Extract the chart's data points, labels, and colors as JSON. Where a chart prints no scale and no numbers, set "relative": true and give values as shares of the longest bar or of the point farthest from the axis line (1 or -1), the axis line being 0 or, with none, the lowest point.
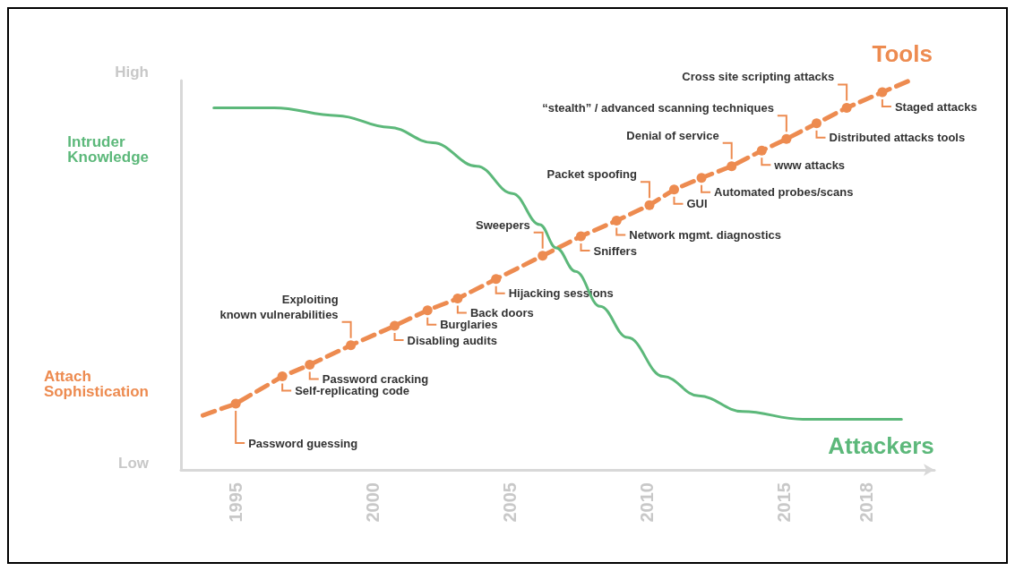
{
  "chart_data": {
    "type": "line",
    "relative": true,
    "xlim": [
      1993,
      2020.5
    ],
    "xticks": [
      1995,
      2000,
      2005,
      2010,
      2015,
      2018
    ],
    "series": [
      {
        "name": "Tools",
        "color": "#ed8b50",
        "line_style": "dashed",
        "marker": "circle",
        "x": [
          1993.8,
          1995.0,
          1996.7,
          1997.7,
          1999.2,
          2000.8,
          2002.0,
          2003.1,
          2004.5,
          2006.2,
          2007.6,
          2008.9,
          2010.1,
          2011.0,
          2012.0,
          2013.1,
          2014.2,
          2015.1,
          2016.2,
          2017.3,
          2018.6,
          2019.6
        ],
        "values": [
          0.14,
          0.17,
          0.24,
          0.27,
          0.32,
          0.37,
          0.41,
          0.44,
          0.49,
          0.55,
          0.6,
          0.64,
          0.68,
          0.72,
          0.75,
          0.78,
          0.82,
          0.85,
          0.89,
          0.93,
          0.97,
          1.0
        ]
      },
      {
        "name": "Attackers",
        "color": "#5cb87a",
        "line_style": "solid",
        "marker": "none",
        "x": [
          1994.2,
          1996.4,
          1998.7,
          2000.6,
          2002.2,
          2003.8,
          2005.1,
          2006.1,
          2006.7,
          2007.4,
          2008.3,
          2009.3,
          2010.6,
          2011.9,
          2013.5,
          2015.7,
          2019.3
        ],
        "values": [
          0.93,
          0.93,
          0.91,
          0.88,
          0.84,
          0.78,
          0.71,
          0.63,
          0.57,
          0.51,
          0.42,
          0.34,
          0.24,
          0.19,
          0.15,
          0.13,
          0.13
        ]
      }
    ],
    "annotations": [
      "High",
      "Intruder\nKnowledge",
      "Attach\nSophistication",
      "Low",
      {
        "text": "Password guessing",
        "x": 1995.0,
        "y": 0.17
      },
      {
        "text": "Self-replicating code",
        "x": 1996.7,
        "y": 0.24
      },
      {
        "text": "Password cracking",
        "x": 1997.7,
        "y": 0.27
      },
      {
        "text": "Exploiting\nknown vulnerabilities",
        "x": 1999.2,
        "y": 0.32
      },
      {
        "text": "Disabling audits",
        "x": 2000.8,
        "y": 0.37
      },
      {
        "text": "Burglaries",
        "x": 2002.0,
        "y": 0.41
      },
      {
        "text": "Back doors",
        "x": 2003.1,
        "y": 0.44
      },
      {
        "text": "Hijacking sessions",
        "x": 2004.5,
        "y": 0.49
      },
      {
        "text": "Sweepers",
        "x": 2006.2,
        "y": 0.55
      },
      {
        "text": "Sniffers",
        "x": 2007.6,
        "y": 0.6
      },
      {
        "text": "Network mgmt. diagnostics",
        "x": 2008.9,
        "y": 0.64
      },
      {
        "text": "Packet spoofing",
        "x": 2010.1,
        "y": 0.68
      },
      {
        "text": "GUI",
        "x": 2011.0,
        "y": 0.72
      },
      {
        "text": "Automated probes/scans",
        "x": 2012.0,
        "y": 0.75
      },
      {
        "text": "Denial of service",
        "x": 2013.1,
        "y": 0.78
      },
      {
        "text": "www attacks",
        "x": 2014.2,
        "y": 0.82
      },
      {
        "text": "“stealth” / advanced scanning techniques",
        "x": 2015.1,
        "y": 0.85
      },
      {
        "text": "Distributed attacks tools",
        "x": 2016.2,
        "y": 0.89
      },
      {
        "text": "Cross site scripting attacks",
        "x": 2017.3,
        "y": 0.93
      },
      {
        "text": "Staged attacks",
        "x": 2018.6,
        "y": 0.97
      }
    ],
    "grid": false,
    "legend": false
  }
}
